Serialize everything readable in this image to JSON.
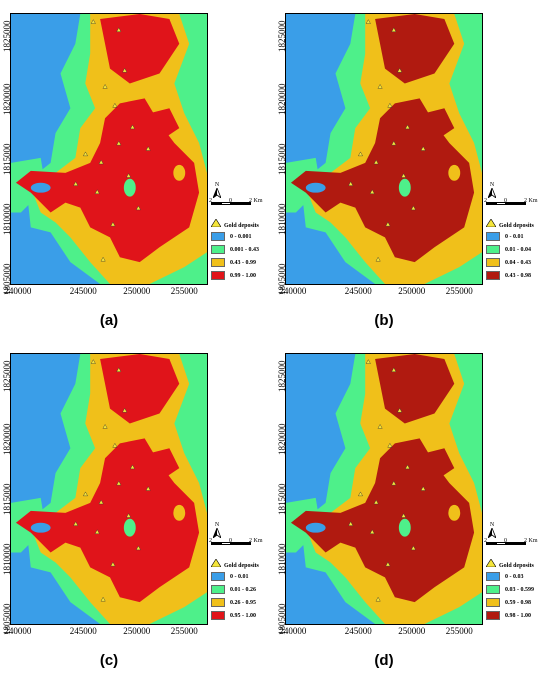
{
  "axes": {
    "y_ticks": [
      "1825000",
      "1820000",
      "1815000",
      "1810000",
      "1805000"
    ],
    "x_ticks": [
      "240000",
      "245000",
      "250000",
      "255000"
    ]
  },
  "north_label": "N",
  "scale": {
    "left": "2",
    "mid": "0",
    "right": "2 Km"
  },
  "colors": {
    "blue": "#3a9ee8",
    "green": "#4ef08a",
    "yellow": "#f0c01a",
    "red": "#e0141a",
    "darkred": "#b01a10"
  },
  "panels": [
    {
      "caption": "(a)",
      "legend_title": "Gold deposits",
      "classes": [
        {
          "label": "0 - 0.001",
          "color": "#3a9ee8"
        },
        {
          "label": "0.001 - 0.43",
          "color": "#4ef08a"
        },
        {
          "label": "0.43 - 0.99",
          "color": "#f0c01a"
        },
        {
          "label": "0.99 - 1.00",
          "color": "#e0141a"
        }
      ]
    },
    {
      "caption": "(b)",
      "legend_title": "Gold deposits",
      "classes": [
        {
          "label": "0 - 0.01",
          "color": "#3a9ee8"
        },
        {
          "label": "0.01 - 0.04",
          "color": "#4ef08a"
        },
        {
          "label": "0.04 - 0.43",
          "color": "#f0c01a"
        },
        {
          "label": "0.43 - 0.98",
          "color": "#b01a10"
        }
      ]
    },
    {
      "caption": "(c)",
      "legend_title": "Gold deposits",
      "classes": [
        {
          "label": "0 - 0.01",
          "color": "#3a9ee8"
        },
        {
          "label": "0.01 - 0.26",
          "color": "#4ef08a"
        },
        {
          "label": "0.26 - 0.95",
          "color": "#f0c01a"
        },
        {
          "label": "0.95 - 1.00",
          "color": "#e0141a"
        }
      ]
    },
    {
      "caption": "(d)",
      "legend_title": "Gold deposits",
      "classes": [
        {
          "label": "0 - 0.03",
          "color": "#3a9ee8"
        },
        {
          "label": "0.03 - 0.599",
          "color": "#4ef08a"
        },
        {
          "label": "0.59 - 0.98",
          "color": "#f0c01a"
        },
        {
          "label": "0.98 - 1.00",
          "color": "#b01a10"
        }
      ]
    }
  ]
}
